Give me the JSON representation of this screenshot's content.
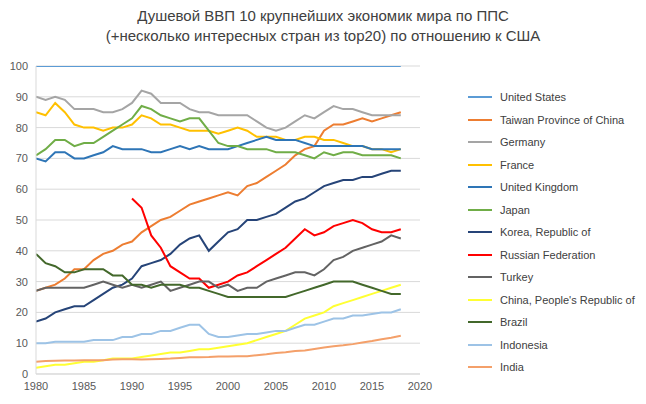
{
  "chart_data": {
    "type": "line",
    "title": "Душевой ВВП 10 крупнейших экономик мира по ППС\n(+несколько интересных стран из top20) по отношению к США",
    "x": [
      1980,
      1981,
      1982,
      1983,
      1984,
      1985,
      1986,
      1987,
      1988,
      1989,
      1990,
      1991,
      1992,
      1993,
      1994,
      1995,
      1996,
      1997,
      1998,
      1999,
      2000,
      2001,
      2002,
      2003,
      2004,
      2005,
      2006,
      2007,
      2008,
      2009,
      2010,
      2011,
      2012,
      2013,
      2014,
      2015,
      2016,
      2017,
      2018
    ],
    "xlim": [
      1980,
      2020
    ],
    "xticks": [
      1980,
      1985,
      1990,
      1995,
      2000,
      2005,
      2010,
      2015,
      2020
    ],
    "ylim": [
      0,
      100
    ],
    "yticks": [
      0,
      10,
      20,
      30,
      40,
      50,
      60,
      70,
      80,
      90,
      100
    ],
    "grid": true,
    "legend": "right",
    "series": [
      {
        "name": "United States",
        "color": "#5B9BD5",
        "values": [
          100,
          100,
          100,
          100,
          100,
          100,
          100,
          100,
          100,
          100,
          100,
          100,
          100,
          100,
          100,
          100,
          100,
          100,
          100,
          100,
          100,
          100,
          100,
          100,
          100,
          100,
          100,
          100,
          100,
          100,
          100,
          100,
          100,
          100,
          100,
          100,
          100,
          100,
          100
        ]
      },
      {
        "name": "Taiwan Province of China",
        "color": "#ED7D31",
        "values": [
          27,
          28,
          29,
          31,
          34,
          34,
          37,
          39,
          40,
          42,
          43,
          46,
          48,
          50,
          51,
          53,
          55,
          56,
          57,
          58,
          59,
          58,
          61,
          62,
          64,
          66,
          68,
          71,
          73,
          74,
          79,
          81,
          81,
          82,
          83,
          82,
          83,
          84,
          85
        ]
      },
      {
        "name": "Germany",
        "color": "#A5A5A5",
        "values": [
          90,
          89,
          90,
          89,
          86,
          86,
          86,
          85,
          85,
          86,
          88,
          92,
          91,
          88,
          88,
          88,
          86,
          85,
          85,
          84,
          84,
          84,
          84,
          82,
          80,
          79,
          80,
          82,
          84,
          83,
          85,
          87,
          86,
          86,
          85,
          84,
          84,
          84,
          84
        ]
      },
      {
        "name": "France",
        "color": "#FFC000",
        "values": [
          85,
          84,
          88,
          85,
          81,
          80,
          80,
          79,
          80,
          80,
          81,
          84,
          83,
          81,
          81,
          80,
          79,
          79,
          79,
          78,
          79,
          80,
          79,
          77,
          77,
          77,
          76,
          76,
          77,
          77,
          76,
          76,
          75,
          74,
          74,
          73,
          73,
          72,
          73
        ]
      },
      {
        "name": "United Kingdom",
        "color": "#2E75B6",
        "values": [
          70,
          69,
          72,
          72,
          70,
          70,
          71,
          72,
          74,
          73,
          73,
          73,
          72,
          72,
          73,
          74,
          73,
          74,
          73,
          73,
          73,
          74,
          75,
          76,
          77,
          76,
          76,
          76,
          75,
          74,
          74,
          74,
          74,
          74,
          74,
          73,
          73,
          73,
          73
        ]
      },
      {
        "name": "Japan",
        "color": "#70AD47",
        "values": [
          71,
          73,
          76,
          76,
          74,
          75,
          75,
          77,
          79,
          81,
          83,
          87,
          86,
          84,
          83,
          82,
          83,
          83,
          79,
          75,
          74,
          74,
          73,
          73,
          73,
          72,
          72,
          72,
          71,
          70,
          72,
          71,
          72,
          72,
          71,
          71,
          71,
          71,
          70
        ]
      },
      {
        "name": "Korea, Republic of",
        "color": "#264478",
        "values": [
          17,
          18,
          20,
          21,
          22,
          22,
          24,
          26,
          28,
          29,
          31,
          35,
          36,
          37,
          39,
          42,
          44,
          45,
          40,
          43,
          46,
          47,
          50,
          50,
          51,
          52,
          54,
          56,
          57,
          59,
          61,
          62,
          63,
          63,
          64,
          64,
          65,
          66,
          66
        ]
      },
      {
        "name": "Russian Federation",
        "color": "#FF0000",
        "values": [
          null,
          null,
          null,
          null,
          null,
          null,
          null,
          null,
          null,
          null,
          57,
          54,
          45,
          41,
          35,
          33,
          31,
          31,
          28,
          29,
          30,
          32,
          33,
          35,
          37,
          39,
          41,
          44,
          47,
          45,
          46,
          48,
          49,
          50,
          49,
          47,
          46,
          46,
          47
        ]
      },
      {
        "name": "Turkey",
        "color": "#636363",
        "values": [
          27,
          28,
          28,
          28,
          28,
          28,
          29,
          30,
          29,
          28,
          29,
          28,
          29,
          30,
          27,
          28,
          29,
          30,
          30,
          28,
          29,
          27,
          28,
          28,
          30,
          31,
          32,
          33,
          33,
          32,
          34,
          37,
          38,
          40,
          41,
          42,
          43,
          45,
          44
        ]
      },
      {
        "name": "China, People's Republic of",
        "color": "#FFFF33",
        "values": [
          2,
          2.5,
          3,
          3,
          3.5,
          4,
          4,
          4.5,
          5,
          5,
          5,
          5.5,
          6,
          6.5,
          7,
          7,
          7.5,
          8,
          8,
          8.5,
          9,
          9.5,
          10,
          11,
          12,
          13,
          14,
          16,
          18,
          19,
          20,
          22,
          23,
          24,
          25,
          26,
          27,
          28,
          29
        ]
      },
      {
        "name": "Brazil",
        "color": "#43682B",
        "values": [
          39,
          36,
          35,
          33,
          33,
          34,
          34,
          34,
          32,
          32,
          29,
          29,
          28,
          29,
          29,
          29,
          28,
          28,
          27,
          26,
          25,
          25,
          25,
          25,
          25,
          25,
          25,
          26,
          27,
          28,
          29,
          30,
          30,
          30,
          29,
          28,
          27,
          26,
          26
        ]
      },
      {
        "name": "Indonesia",
        "color": "#9DC3E6",
        "values": [
          10,
          10,
          10.5,
          10.5,
          10.5,
          10.5,
          11,
          11,
          11,
          12,
          12,
          13,
          13,
          14,
          14,
          15,
          16,
          16,
          13,
          12,
          12,
          12.5,
          13,
          13,
          13.5,
          14,
          14,
          15,
          16,
          16,
          17,
          18,
          18,
          19,
          19,
          19.5,
          20,
          20,
          21
        ]
      },
      {
        "name": "India",
        "color": "#F4A06A",
        "values": [
          4,
          4.2,
          4.3,
          4.4,
          4.4,
          4.5,
          4.5,
          4.5,
          4.7,
          4.8,
          4.8,
          4.7,
          4.8,
          4.9,
          5,
          5.2,
          5.4,
          5.4,
          5.5,
          5.7,
          5.7,
          5.8,
          5.8,
          6.1,
          6.4,
          6.8,
          7.1,
          7.5,
          7.6,
          8.1,
          8.6,
          9,
          9.3,
          9.7,
          10.2,
          10.7,
          11.3,
          11.8,
          12.4
        ]
      }
    ]
  }
}
